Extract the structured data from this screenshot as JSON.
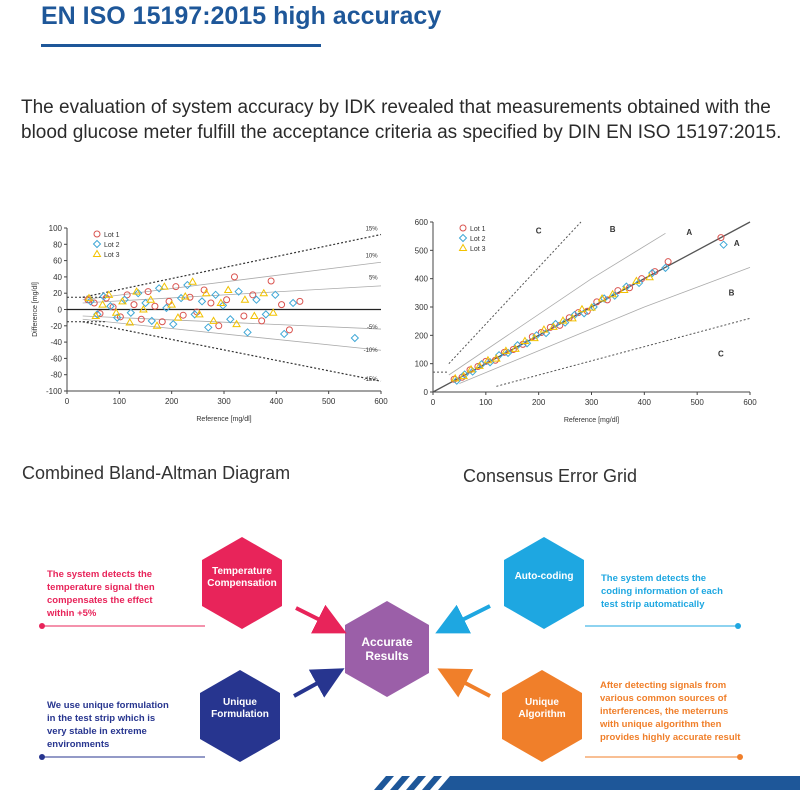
{
  "header": {
    "title": "EN ISO 15197:2015 high accuracy"
  },
  "intro": {
    "text": "The evaluation of system accuracy by IDK revealed that measurements obtained with the blood glucose meter fulfill the acceptance criteria as specified by DIN EN ISO 15197:2015."
  },
  "captions": {
    "bland_altman": "Combined Bland-Altman Diagram",
    "error_grid": "Consensus Error Grid"
  },
  "colors": {
    "lot1": "#d9534f",
    "lot2": "#3fa7d6",
    "lot3": "#f2c200",
    "title": "#1e5799",
    "temperature": "#e8245a",
    "autocoding": "#1ea7e1",
    "formulation": "#27358f",
    "algorithm": "#f07f2a",
    "center": "#9b5fa8"
  },
  "chart_data": [
    {
      "type": "scatter",
      "title": "",
      "xlabel": "Reference [mg/dl]",
      "ylabel": "Difference [mg/dl]",
      "xlim": [
        0,
        600
      ],
      "ylim": [
        -100,
        100
      ],
      "xticks": [
        0,
        100,
        200,
        300,
        400,
        500,
        600
      ],
      "yticks": [
        -100,
        -80,
        -60,
        -40,
        -20,
        0,
        20,
        40,
        60,
        80,
        100
      ],
      "grid": false,
      "legend": "top-left",
      "series": [
        {
          "name": "Lot 1",
          "marker": "circle",
          "color": "#d9534f",
          "x": [
            40,
            52,
            63,
            75,
            88,
            102,
            115,
            128,
            142,
            155,
            168,
            182,
            195,
            208,
            222,
            235,
            248,
            262,
            275,
            290,
            305,
            320,
            338,
            355,
            372,
            390,
            410,
            425,
            445
          ],
          "y": [
            12,
            8,
            -5,
            14,
            3,
            -9,
            18,
            6,
            -12,
            22,
            4,
            -15,
            10,
            28,
            -7,
            15,
            -3,
            24,
            8,
            -20,
            12,
            40,
            -8,
            18,
            -14,
            35,
            6,
            -25,
            10
          ]
        },
        {
          "name": "Lot 2",
          "marker": "diamond",
          "color": "#3fa7d6",
          "x": [
            45,
            58,
            70,
            83,
            96,
            110,
            122,
            136,
            150,
            162,
            176,
            190,
            203,
            218,
            230,
            244,
            258,
            270,
            284,
            298,
            312,
            328,
            345,
            362,
            380,
            398,
            415,
            432,
            550
          ],
          "y": [
            10,
            -6,
            16,
            4,
            -10,
            12,
            -4,
            20,
            8,
            -14,
            26,
            2,
            -18,
            14,
            30,
            -6,
            10,
            -22,
            18,
            5,
            -12,
            22,
            -28,
            12,
            -6,
            18,
            -30,
            8,
            -35
          ]
        },
        {
          "name": "Lot 3",
          "marker": "triangle",
          "color": "#f2c200",
          "x": [
            42,
            55,
            68,
            80,
            94,
            106,
            120,
            133,
            146,
            160,
            172,
            186,
            200,
            212,
            226,
            240,
            253,
            266,
            280,
            294,
            308,
            324,
            340,
            358,
            376,
            394
          ],
          "y": [
            14,
            -8,
            6,
            18,
            -4,
            10,
            -16,
            22,
            0,
            12,
            -20,
            28,
            6,
            -10,
            16,
            34,
            -6,
            20,
            -14,
            8,
            24,
            -18,
            12,
            -8,
            20,
            -4
          ]
        }
      ],
      "annotations": [
        "15%",
        "10%",
        "5%",
        "-5%",
        "-10%",
        "-15%"
      ]
    },
    {
      "type": "scatter",
      "title": "",
      "xlabel": "Reference [mg/dl]",
      "ylabel": "",
      "xlim": [
        0,
        600
      ],
      "ylim": [
        0,
        600
      ],
      "xticks": [
        0,
        100,
        200,
        300,
        400,
        500,
        600
      ],
      "yticks": [
        0,
        100,
        200,
        300,
        400,
        500,
        600
      ],
      "grid": false,
      "legend": "top-left",
      "zones": [
        "A",
        "B",
        "C"
      ],
      "series": [
        {
          "name": "Lot 1",
          "marker": "circle",
          "color": "#d9534f",
          "x": [
            40,
            55,
            70,
            85,
            100,
            118,
            135,
            152,
            170,
            188,
            205,
            222,
            240,
            258,
            275,
            292,
            310,
            330,
            350,
            372,
            395,
            420,
            445,
            545
          ],
          "y": [
            45,
            52,
            78,
            90,
            108,
            112,
            140,
            150,
            168,
            195,
            210,
            228,
            235,
            262,
            280,
            285,
            318,
            325,
            358,
            368,
            400,
            425,
            460,
            545
          ]
        },
        {
          "name": "Lot 2",
          "marker": "diamond",
          "color": "#3fa7d6",
          "x": [
            45,
            60,
            75,
            92,
            108,
            125,
            142,
            160,
            178,
            196,
            214,
            232,
            250,
            268,
            286,
            304,
            324,
            344,
            366,
            390,
            415,
            440,
            550
          ],
          "y": [
            40,
            62,
            72,
            98,
            105,
            130,
            138,
            165,
            172,
            200,
            208,
            240,
            245,
            272,
            278,
            300,
            330,
            340,
            372,
            385,
            420,
            438,
            520
          ]
        },
        {
          "name": "Lot 3",
          "marker": "triangle",
          "color": "#f2c200",
          "x": [
            42,
            58,
            72,
            88,
            104,
            120,
            138,
            156,
            174,
            192,
            210,
            228,
            246,
            264,
            282,
            300,
            320,
            340,
            362,
            385,
            410
          ],
          "y": [
            48,
            56,
            80,
            92,
            112,
            118,
            145,
            152,
            180,
            190,
            220,
            230,
            252,
            260,
            292,
            298,
            330,
            345,
            360,
            392,
            405
          ]
        }
      ]
    }
  ],
  "features": {
    "center": {
      "label": "Accurate\nResults"
    },
    "items": [
      {
        "id": "temperature",
        "label": "Temperature\nCompensation",
        "desc": "The system detects the\ntemperature signal then\ncompensates the effect\nwithin +5%"
      },
      {
        "id": "autocoding",
        "label": "Auto-coding",
        "desc": "The system detects the\ncoding information of each\ntest strip automatically"
      },
      {
        "id": "formulation",
        "label": "Unique\nFormulation",
        "desc": "We use unique formulation\nin the test strip which is\nvery stable in extreme\nenvironments"
      },
      {
        "id": "algorithm",
        "label": "Unique\nAlgorithm",
        "desc": "After detecting signals from\nvarious common sources of\ninterferences, the meterruns\nwith unique algorithm then\nprovides highly accurate result"
      }
    ]
  }
}
